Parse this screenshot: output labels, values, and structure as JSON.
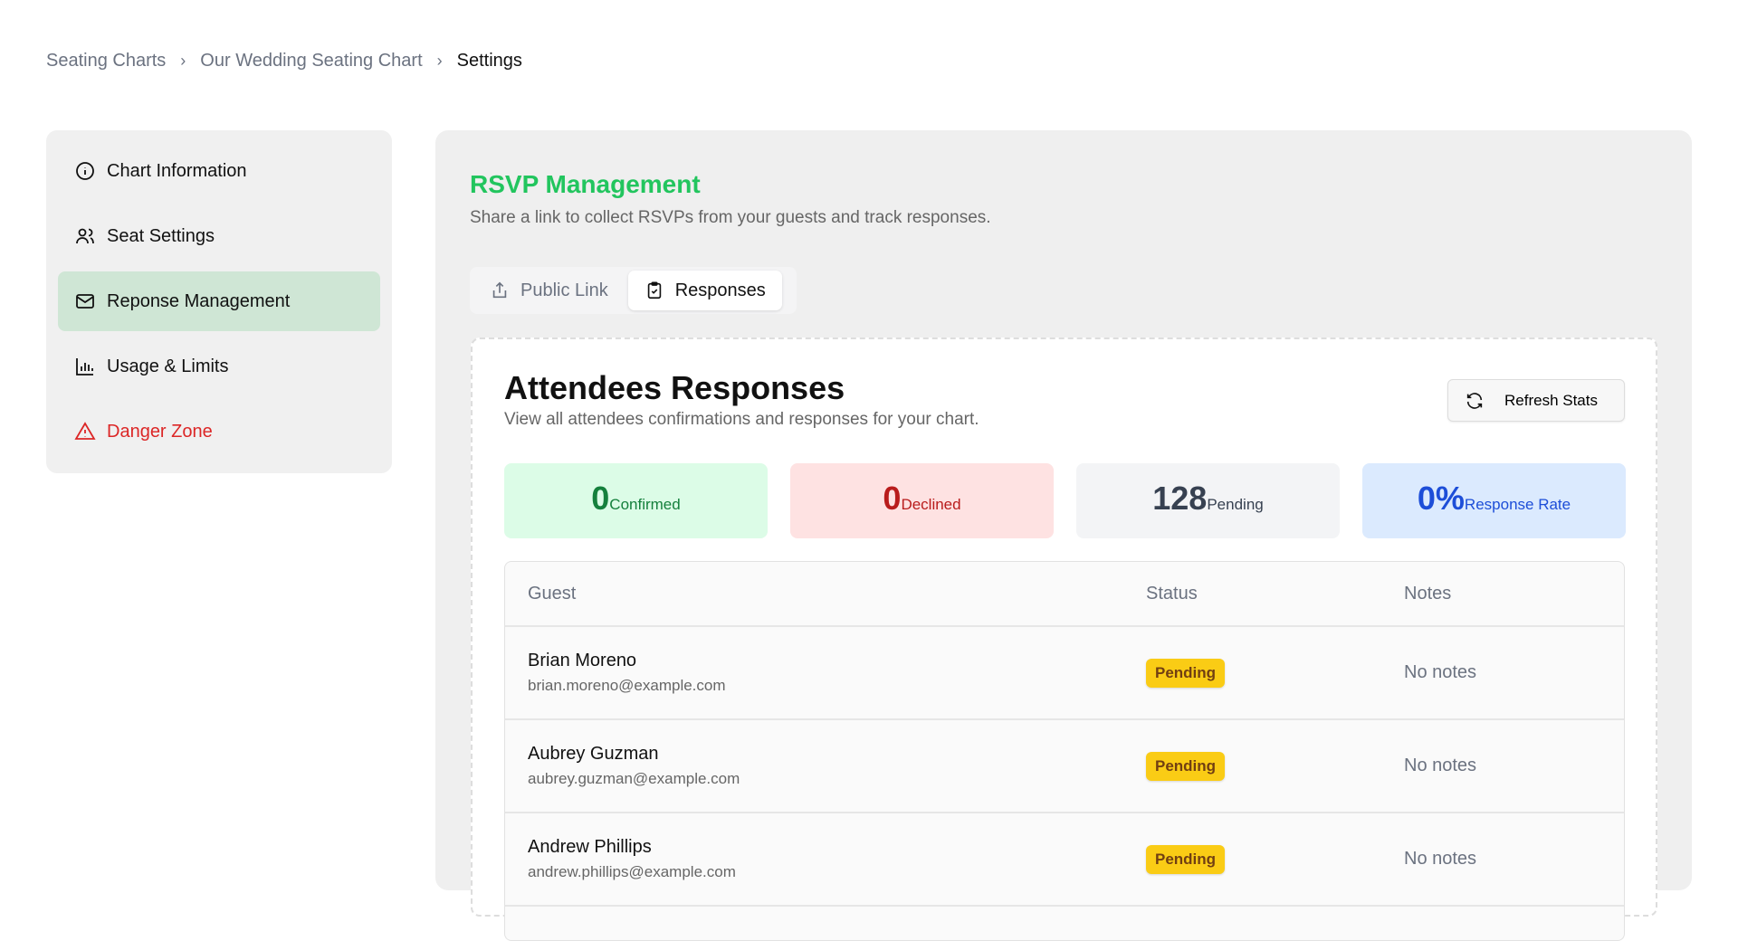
{
  "breadcrumb": [
    "Seating Charts",
    "Our Wedding Seating Chart",
    "Settings"
  ],
  "sidebar": {
    "items": [
      {
        "label": "Chart Information",
        "icon": "info-icon"
      },
      {
        "label": "Seat Settings",
        "icon": "users-icon"
      },
      {
        "label": "Reponse Management",
        "icon": "mail-icon",
        "active": true
      },
      {
        "label": "Usage & Limits",
        "icon": "bar-chart-icon"
      },
      {
        "label": "Danger Zone",
        "icon": "warning-icon",
        "color": "#dc2626"
      }
    ]
  },
  "main": {
    "title": "RSVP Management",
    "subtitle": "Share a link to collect RSVPs from your guests and track responses.",
    "tabs": [
      {
        "label": "Public Link",
        "icon": "share-icon"
      },
      {
        "label": "Responses",
        "icon": "clipboard-check-icon",
        "active": true
      }
    ],
    "card": {
      "title": "Attendees Responses",
      "subtitle": "View all attendees confirmations and responses for your chart.",
      "refresh_label": "Refresh Stats",
      "stats": [
        {
          "value": "0",
          "label": "Confirmed",
          "color": "#15803d",
          "bg": "#dcfce7"
        },
        {
          "value": "0",
          "label": "Declined",
          "color": "#b91c1c",
          "bg": "#fee2e2"
        },
        {
          "value": "128",
          "label": "Pending",
          "color": "#374151",
          "bg": "#f3f4f6"
        },
        {
          "value": "0%",
          "label": "Response Rate",
          "color": "#1d4ed8",
          "bg": "#dbeafe"
        }
      ],
      "table": {
        "headers": [
          "Guest",
          "Status",
          "Notes"
        ],
        "rows": [
          {
            "name": "Brian Moreno",
            "email": "brian.moreno@example.com",
            "status": "Pending",
            "notes": "No notes"
          },
          {
            "name": "Aubrey Guzman",
            "email": "aubrey.guzman@example.com",
            "status": "Pending",
            "notes": "No notes"
          },
          {
            "name": "Andrew Phillips",
            "email": "andrew.phillips@example.com",
            "status": "Pending",
            "notes": "No notes"
          }
        ]
      }
    }
  }
}
